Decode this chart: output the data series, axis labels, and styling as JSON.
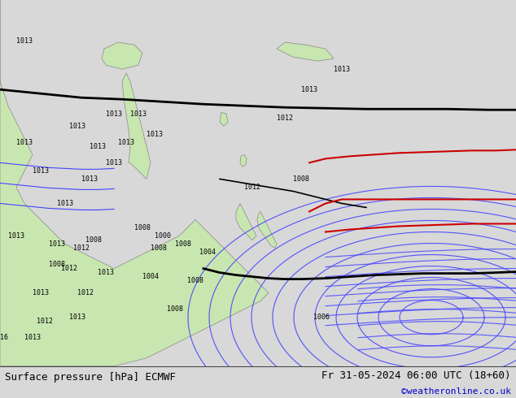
{
  "title_left": "Surface pressure [hPa] ECMWF",
  "title_right": "Fr 31-05-2024 06:00 UTC (18+60)",
  "credit": "©weatheronline.co.uk",
  "bg_color": "#d8d8d8",
  "land_color": "#c8e6b0",
  "sea_color": "#d8d8d8",
  "title_bg": "#ffffff",
  "bottom_bar_bg": "#ffffff",
  "isobar_colors": {
    "low": "#0000cc",
    "mid_black": "#000000",
    "high_red": "#cc0000",
    "standard_blue": "#4444ff"
  }
}
